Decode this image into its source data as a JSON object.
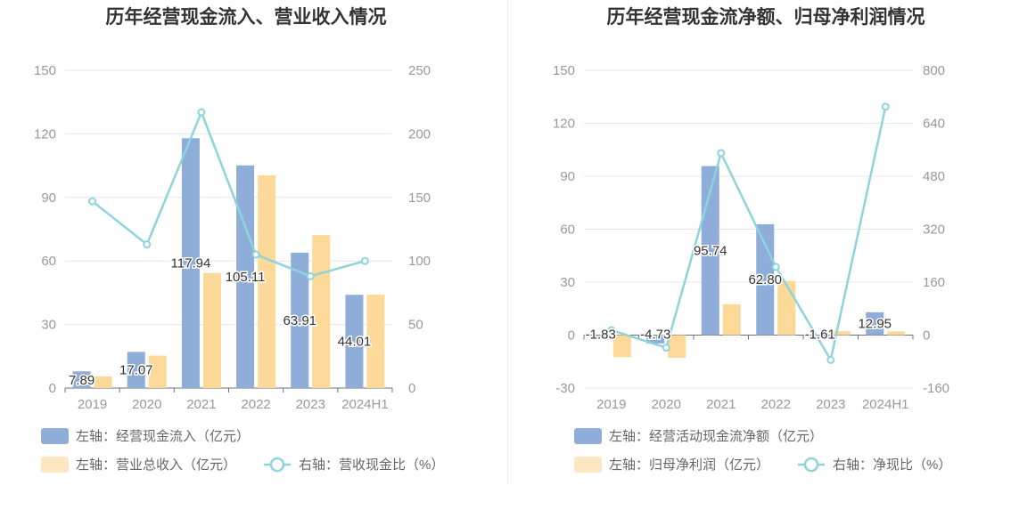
{
  "colors": {
    "bar_primary": "#8eadd9",
    "bar_secondary": "#fcd998",
    "line": "#8dd4dc",
    "legend_secondary": "#fde6c2",
    "grid": "#e3e7f0",
    "axis": "#999999",
    "title": "#333333",
    "label": "#333333",
    "legend_text": "#666666"
  },
  "chart_data": [
    {
      "type": "bar",
      "title": "历年经营现金流入、营业收入情况",
      "categories": [
        "2019",
        "2020",
        "2021",
        "2022",
        "2023",
        "2024H1"
      ],
      "y_left": {
        "min": 0,
        "max": 150,
        "ticks": [
          0,
          30,
          60,
          90,
          120,
          150
        ]
      },
      "y_right": {
        "min": 0,
        "max": 250,
        "ticks": [
          0,
          50,
          100,
          150,
          200,
          250
        ]
      },
      "series": [
        {
          "name": "左轴：经营现金流入（亿元）",
          "kind": "bar",
          "axis": "left",
          "values": [
            7.89,
            17.07,
            117.94,
            105.11,
            63.91,
            44.01
          ],
          "labels": [
            "7.89",
            "17.07",
            "117.94",
            "105.11",
            "63.91",
            "44.01"
          ]
        },
        {
          "name": "左轴：营业总收入（亿元）",
          "kind": "bar",
          "axis": "left",
          "values": [
            5.5,
            15.3,
            54.3,
            100.4,
            72.2,
            44.1
          ]
        },
        {
          "name": "右轴：营收现金比（%）",
          "kind": "line",
          "axis": "right",
          "values": [
            147,
            113,
            217,
            105,
            88,
            100
          ]
        }
      ],
      "legend": "bottom",
      "grid": true
    },
    {
      "type": "bar",
      "title": "历年经营现金流净额、归母净利润情况",
      "categories": [
        "2019",
        "2020",
        "2021",
        "2022",
        "2023",
        "2024H1"
      ],
      "y_left": {
        "min": -30,
        "max": 150,
        "ticks": [
          -30,
          0,
          30,
          60,
          90,
          120,
          150
        ]
      },
      "y_right": {
        "min": -160,
        "max": 800,
        "ticks": [
          -160,
          0,
          160,
          320,
          480,
          640,
          800
        ]
      },
      "series": [
        {
          "name": "左轴：经营活动现金流净额（亿元）",
          "kind": "bar",
          "axis": "left",
          "values": [
            -1.83,
            -4.73,
            95.74,
            62.8,
            -1.61,
            12.95
          ],
          "labels": [
            "-1.83",
            "-4.73",
            "95.74",
            "62.80",
            "-1.61",
            "12.95"
          ]
        },
        {
          "name": "左轴：归母净利润（亿元）",
          "kind": "bar",
          "axis": "left",
          "values": [
            -12.5,
            -12.8,
            17.5,
            30.7,
            2.2,
            2.1
          ]
        },
        {
          "name": "右轴：净现比（%）",
          "kind": "line",
          "axis": "right",
          "values": [
            15,
            -38,
            550,
            206,
            -75,
            690
          ]
        }
      ],
      "legend": "bottom",
      "grid": true
    }
  ]
}
